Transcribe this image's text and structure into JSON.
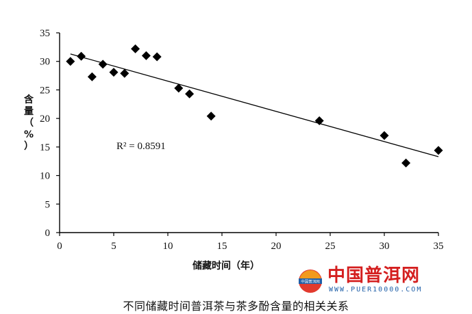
{
  "chart_data": {
    "type": "scatter",
    "title": "",
    "xlabel": "储藏时间（年）",
    "ylabel": "含量（%）",
    "xlim": [
      0,
      35
    ],
    "ylim": [
      0,
      35
    ],
    "x_ticks": [
      0,
      5,
      10,
      15,
      20,
      25,
      30,
      35
    ],
    "y_ticks": [
      0,
      5,
      10,
      15,
      20,
      25,
      30,
      35
    ],
    "grid": false,
    "legend": "none",
    "marker": "diamond",
    "marker_color": "#000000",
    "points": [
      {
        "x": 1,
        "y": 30.0
      },
      {
        "x": 2,
        "y": 30.9
      },
      {
        "x": 3,
        "y": 27.3
      },
      {
        "x": 4,
        "y": 29.5
      },
      {
        "x": 5,
        "y": 28.1
      },
      {
        "x": 6,
        "y": 27.9
      },
      {
        "x": 7,
        "y": 32.2
      },
      {
        "x": 8,
        "y": 31.0
      },
      {
        "x": 9,
        "y": 30.8
      },
      {
        "x": 11,
        "y": 25.3
      },
      {
        "x": 12,
        "y": 24.3
      },
      {
        "x": 14,
        "y": 20.4
      },
      {
        "x": 24,
        "y": 19.6
      },
      {
        "x": 30,
        "y": 17.0
      },
      {
        "x": 32,
        "y": 12.2
      },
      {
        "x": 35,
        "y": 14.4
      }
    ],
    "trendline": {
      "x": [
        1,
        35
      ],
      "y": [
        31.3,
        13.3
      ]
    },
    "annotation": "R² = 0.8591"
  },
  "caption": "不同储藏时间普洱茶与茶多酚含量的相关关系",
  "watermark": {
    "name": "中国普洱网",
    "url": "WWW.PUER10000.COM",
    "logo_text": "中国普洱网",
    "logo_color": "#1f5fa8",
    "name_color": "#d41f1f"
  }
}
